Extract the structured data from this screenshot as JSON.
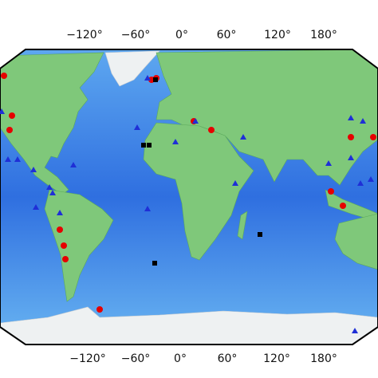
{
  "map": {
    "top_labels": [
      "−120°",
      "−60°",
      "0°",
      "60°",
      "120°",
      "180°"
    ],
    "bottom_labels": [
      "−120°",
      "−60°",
      "0°",
      "60°",
      "120°",
      "180°"
    ]
  }
}
